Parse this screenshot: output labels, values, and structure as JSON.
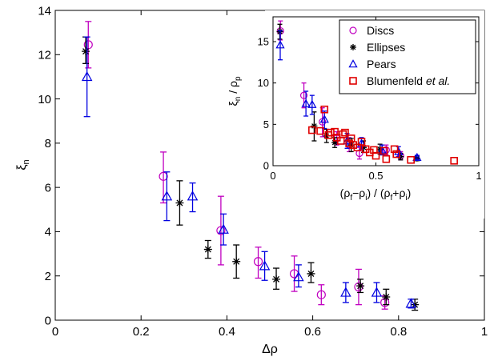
{
  "chart_data": [
    {
      "type": "scatter",
      "xlabel": "Δρ",
      "ylabel": "ξn",
      "xlim": [
        0,
        1
      ],
      "ylim": [
        0,
        14
      ],
      "xticks": [
        "0",
        "0.2",
        "0.4",
        "0.6",
        "0.8",
        "1"
      ],
      "yticks": [
        "0",
        "2",
        "4",
        "6",
        "8",
        "10",
        "12",
        "14"
      ],
      "grid": false,
      "series": [
        {
          "name": "Discs",
          "color": "#c000c0",
          "marker": "circle",
          "points": [
            {
              "x": 0.077,
              "y": 12.45,
              "lo": 11.4,
              "hi": 13.5
            },
            {
              "x": 0.252,
              "y": 6.5,
              "lo": 5.3,
              "hi": 7.6
            },
            {
              "x": 0.386,
              "y": 4.05,
              "lo": 2.5,
              "hi": 5.6
            },
            {
              "x": 0.473,
              "y": 2.65,
              "lo": 1.9,
              "hi": 3.3
            },
            {
              "x": 0.557,
              "y": 2.1,
              "lo": 1.3,
              "hi": 2.9
            },
            {
              "x": 0.62,
              "y": 1.15,
              "lo": 0.7,
              "hi": 1.6
            },
            {
              "x": 0.707,
              "y": 1.5,
              "lo": 0.7,
              "hi": 2.3
            },
            {
              "x": 0.768,
              "y": 0.8,
              "lo": 0.5,
              "hi": 1.1
            }
          ]
        },
        {
          "name": "Ellipses",
          "color": "#000000",
          "marker": "star",
          "points": [
            {
              "x": 0.071,
              "y": 12.15,
              "lo": 11.6,
              "hi": 12.8
            },
            {
              "x": 0.29,
              "y": 5.3,
              "lo": 4.3,
              "hi": 6.3
            },
            {
              "x": 0.356,
              "y": 3.2,
              "lo": 2.8,
              "hi": 3.6
            },
            {
              "x": 0.422,
              "y": 2.65,
              "lo": 1.9,
              "hi": 3.4
            },
            {
              "x": 0.515,
              "y": 1.85,
              "lo": 1.4,
              "hi": 2.35
            },
            {
              "x": 0.596,
              "y": 2.1,
              "lo": 1.7,
              "hi": 2.6
            },
            {
              "x": 0.711,
              "y": 1.55,
              "lo": 1.25,
              "hi": 1.85
            },
            {
              "x": 0.771,
              "y": 1.05,
              "lo": 0.7,
              "hi": 1.4
            },
            {
              "x": 0.838,
              "y": 0.7,
              "lo": 0.45,
              "hi": 0.95
            }
          ]
        },
        {
          "name": "Pears",
          "color": "#0000e0",
          "marker": "triangle",
          "points": [
            {
              "x": 0.074,
              "y": 11.0,
              "lo": 9.2,
              "hi": 12.8
            },
            {
              "x": 0.26,
              "y": 5.6,
              "lo": 4.5,
              "hi": 6.7
            },
            {
              "x": 0.32,
              "y": 5.6,
              "lo": 4.9,
              "hi": 6.2
            },
            {
              "x": 0.392,
              "y": 4.1,
              "lo": 3.4,
              "hi": 4.8
            },
            {
              "x": 0.488,
              "y": 2.45,
              "lo": 1.8,
              "hi": 3.1
            },
            {
              "x": 0.567,
              "y": 1.95,
              "lo": 1.5,
              "hi": 2.5
            },
            {
              "x": 0.677,
              "y": 1.25,
              "lo": 0.8,
              "hi": 1.7
            },
            {
              "x": 0.749,
              "y": 1.25,
              "lo": 0.8,
              "hi": 1.7
            },
            {
              "x": 0.829,
              "y": 0.75,
              "lo": 0.55,
              "hi": 0.95
            }
          ]
        }
      ]
    },
    {
      "type": "scatter",
      "xlabel": "(ρf−ρi) / (ρf+ρi)",
      "ylabel": "ξn / ρp",
      "xlim": [
        0,
        1
      ],
      "ylim": [
        0,
        18
      ],
      "xticks": [
        "0",
        "0.5",
        "1"
      ],
      "yticks": [
        "0",
        "5",
        "10",
        "15"
      ],
      "grid": false,
      "legend": {
        "position": "top-right",
        "entries": [
          {
            "label": "Discs",
            "series": "Discs"
          },
          {
            "label": "Ellipses",
            "series": "Ellipses"
          },
          {
            "label": "Pears",
            "series": "Pears"
          },
          {
            "label": "Blumenfeld ",
            "label_italic": "et al.",
            "series": "Blumenfeld et al."
          }
        ]
      },
      "series": [
        {
          "name": "Discs",
          "color": "#c000c0",
          "marker": "circle",
          "points": [
            {
              "x": 0.036,
              "y": 16.3,
              "lo": 15.2,
              "hi": 17.5
            },
            {
              "x": 0.15,
              "y": 8.5,
              "lo": 7.0,
              "hi": 10.0
            },
            {
              "x": 0.24,
              "y": 5.3,
              "lo": 3.5,
              "hi": 7.0
            },
            {
              "x": 0.31,
              "y": 3.3,
              "lo": 2.5,
              "hi": 4.1
            },
            {
              "x": 0.37,
              "y": 2.6,
              "lo": 1.7,
              "hi": 3.4
            },
            {
              "x": 0.42,
              "y": 1.5,
              "lo": 0.8,
              "hi": 2.2
            },
            {
              "x": 0.55,
              "y": 1.9,
              "lo": 1.3,
              "hi": 2.5
            },
            {
              "x": 0.62,
              "y": 1.2,
              "lo": 0.7,
              "hi": 1.7
            }
          ]
        },
        {
          "name": "Ellipses",
          "color": "#000000",
          "marker": "star",
          "points": [
            {
              "x": 0.033,
              "y": 16.2,
              "lo": 15.3,
              "hi": 17.1
            },
            {
              "x": 0.2,
              "y": 4.8,
              "lo": 3.0,
              "hi": 6.5
            },
            {
              "x": 0.26,
              "y": 3.6,
              "lo": 2.8,
              "hi": 4.4
            },
            {
              "x": 0.3,
              "y": 2.8,
              "lo": 2.2,
              "hi": 3.4
            },
            {
              "x": 0.38,
              "y": 2.5,
              "lo": 1.7,
              "hi": 3.3
            },
            {
              "x": 0.44,
              "y": 2.2,
              "lo": 1.6,
              "hi": 3.0
            },
            {
              "x": 0.52,
              "y": 2.0,
              "lo": 1.4,
              "hi": 2.6
            },
            {
              "x": 0.62,
              "y": 1.1,
              "lo": 0.7,
              "hi": 1.5
            },
            {
              "x": 0.7,
              "y": 0.9,
              "lo": 0.6,
              "hi": 1.2
            }
          ]
        },
        {
          "name": "Pears",
          "color": "#0000e0",
          "marker": "triangle",
          "points": [
            {
              "x": 0.035,
              "y": 14.6,
              "lo": 12.8,
              "hi": 16.3
            },
            {
              "x": 0.16,
              "y": 7.5,
              "lo": 6.0,
              "hi": 9.0
            },
            {
              "x": 0.19,
              "y": 7.4,
              "lo": 6.2,
              "hi": 8.5
            },
            {
              "x": 0.25,
              "y": 5.6,
              "lo": 4.5,
              "hi": 6.6
            },
            {
              "x": 0.36,
              "y": 3.0,
              "lo": 2.1,
              "hi": 3.9
            },
            {
              "x": 0.43,
              "y": 2.7,
              "lo": 2.0,
              "hi": 3.4
            },
            {
              "x": 0.53,
              "y": 1.9,
              "lo": 1.3,
              "hi": 2.5
            },
            {
              "x": 0.61,
              "y": 1.7,
              "lo": 1.1,
              "hi": 2.3
            },
            {
              "x": 0.7,
              "y": 1.0,
              "lo": 0.75,
              "hi": 1.25
            }
          ]
        },
        {
          "name": "Blumenfeld et al.",
          "color": "#e00000",
          "marker": "square",
          "points": [
            {
              "x": 0.19,
              "y": 4.3
            },
            {
              "x": 0.23,
              "y": 4.2
            },
            {
              "x": 0.25,
              "y": 6.8
            },
            {
              "x": 0.27,
              "y": 3.7
            },
            {
              "x": 0.28,
              "y": 4.0
            },
            {
              "x": 0.3,
              "y": 4.1
            },
            {
              "x": 0.31,
              "y": 3.4
            },
            {
              "x": 0.33,
              "y": 3.0
            },
            {
              "x": 0.34,
              "y": 3.8
            },
            {
              "x": 0.35,
              "y": 4.0
            },
            {
              "x": 0.37,
              "y": 2.7
            },
            {
              "x": 0.38,
              "y": 3.3
            },
            {
              "x": 0.39,
              "y": 2.5
            },
            {
              "x": 0.41,
              "y": 2.2
            },
            {
              "x": 0.43,
              "y": 2.9
            },
            {
              "x": 0.45,
              "y": 2.0
            },
            {
              "x": 0.47,
              "y": 1.6
            },
            {
              "x": 0.49,
              "y": 1.9
            },
            {
              "x": 0.5,
              "y": 1.2
            },
            {
              "x": 0.54,
              "y": 1.8
            },
            {
              "x": 0.55,
              "y": 0.8
            },
            {
              "x": 0.59,
              "y": 2.0
            },
            {
              "x": 0.6,
              "y": 1.4
            },
            {
              "x": 0.67,
              "y": 0.7
            },
            {
              "x": 0.88,
              "y": 0.6
            }
          ]
        }
      ]
    }
  ]
}
